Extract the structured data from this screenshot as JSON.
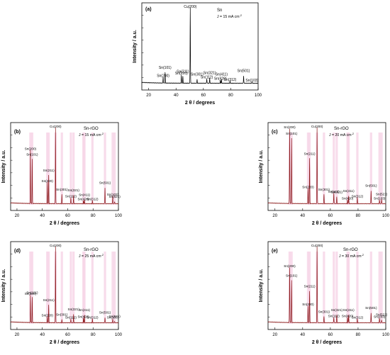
{
  "chart_data": [
    {
      "type": "line",
      "panel": "(a)",
      "material": "Sn",
      "current_density": "J = 15 mA cm",
      "current_density_sup": "-2",
      "xlabel": "2 θ / degrees",
      "ylabel": "Intensity / a.u.",
      "xlim": [
        15,
        100
      ],
      "xticks": [
        20,
        40,
        60,
        80,
        100
      ],
      "series_color": "#000000",
      "peaks": [
        {
          "label": "Sn(200)",
          "x": 30.6,
          "h": 0.08
        },
        {
          "label": "Sn(101)",
          "x": 32.0,
          "h": 0.14
        },
        {
          "label": "Sn(220)",
          "x": 43.9,
          "h": 0.11
        },
        {
          "label": "Sn(211)",
          "x": 45.0,
          "h": 0.09
        },
        {
          "label": "Cu(200)",
          "x": 50.4,
          "h": 1.0
        },
        {
          "label": "Sn(301)",
          "x": 55.4,
          "h": 0.05
        },
        {
          "label": "Sn(112)",
          "x": 62.5,
          "h": 0.06
        },
        {
          "label": "Sn(321)",
          "x": 64.6,
          "h": 0.07
        },
        {
          "label": "Sn(420)",
          "x": 72.4,
          "h": 0.04
        },
        {
          "label": "Sn(411)",
          "x": 73.2,
          "h": 0.05
        },
        {
          "label": "Sn(312)",
          "x": 79.5,
          "h": 0.03
        },
        {
          "label": "Sn(501)",
          "x": 89.4,
          "h": 0.1
        },
        {
          "label": "Sn(103)",
          "x": 95.5,
          "h": 0.02
        }
      ]
    },
    {
      "type": "line",
      "panel": "(b)",
      "material": "Sn-rGO",
      "current_density": "J = 15 mA cm",
      "current_density_sup": "-2",
      "xlabel": "2 θ / degrees",
      "ylabel": "Intensity / a.u.",
      "xlim": [
        15,
        100
      ],
      "xticks": [
        20,
        40,
        60,
        80,
        100
      ],
      "series_color": "#8b1a1a",
      "peaks": [
        {
          "label": "Sn(200)",
          "x": 30.6,
          "h": 0.7
        },
        {
          "label": "Sn(101)",
          "x": 32.0,
          "h": 0.58
        },
        {
          "label": "Sn(220)",
          "x": 43.9,
          "h": 0.28
        },
        {
          "label": "Sn(211)",
          "x": 45.0,
          "h": 0.37
        },
        {
          "label": "Cu(200)",
          "x": 50.4,
          "h": 1.0
        },
        {
          "label": "Sn(301)",
          "x": 55.4,
          "h": 0.12
        },
        {
          "label": "Sn(112)",
          "x": 62.5,
          "h": 0.08
        },
        {
          "label": "Sn(321)",
          "x": 64.6,
          "h": 0.11
        },
        {
          "label": "Sn(420)",
          "x": 72.4,
          "h": 0.04
        },
        {
          "label": "Sn(411)",
          "x": 73.2,
          "h": 0.05
        },
        {
          "label": "Sn(312)",
          "x": 79.5,
          "h": 0.04
        },
        {
          "label": "Sn(501)",
          "x": 89.4,
          "h": 0.21
        },
        {
          "label": "Sn(103)",
          "x": 95.5,
          "h": 0.1
        },
        {
          "label": "Sn(521)",
          "x": 97.0,
          "h": 0.03
        }
      ]
    },
    {
      "type": "line",
      "panel": "(c)",
      "material": "Sn-rGO",
      "current_density": "J = 20 mA cm",
      "current_density_sup": "-2",
      "xlabel": "2 θ / degrees",
      "ylabel": "Intensity / a.u.",
      "xlim": [
        15,
        100
      ],
      "xticks": [
        20,
        40,
        60,
        80,
        100
      ],
      "series_color": "#8b1a1a",
      "peaks": [
        {
          "label": "Sn(200)",
          "x": 30.6,
          "h": 0.98
        },
        {
          "label": "Sn(101)",
          "x": 32.0,
          "h": 0.85
        },
        {
          "label": "Sn(220)",
          "x": 43.9,
          "h": 0.2
        },
        {
          "label": "Sn(211)",
          "x": 45.0,
          "h": 0.59
        },
        {
          "label": "Cu(200)",
          "x": 50.4,
          "h": 1.0
        },
        {
          "label": "Sn(301)",
          "x": 55.4,
          "h": 0.12
        },
        {
          "label": "Sn(112)",
          "x": 62.5,
          "h": 0.14
        },
        {
          "label": "Sn(321)",
          "x": 64.6,
          "h": 0.09
        },
        {
          "label": "Sn(420)",
          "x": 72.4,
          "h": 0.05
        },
        {
          "label": "Sn(411)",
          "x": 73.2,
          "h": 0.1
        },
        {
          "label": "Sn(312)",
          "x": 79.5,
          "h": 0.08
        },
        {
          "label": "Sn(501)",
          "x": 89.4,
          "h": 0.17
        },
        {
          "label": "Sn(103)",
          "x": 95.5,
          "h": 0.05
        },
        {
          "label": "Sn(521)",
          "x": 97.0,
          "h": 0.06
        }
      ]
    },
    {
      "type": "line",
      "panel": "(d)",
      "material": "Sn-rGO",
      "current_density": "J = 25 mA cm",
      "current_density_sup": "-2",
      "xlabel": "2 θ / degrees",
      "ylabel": "Intensity / a.u.",
      "xlim": [
        15,
        100
      ],
      "xticks": [
        20,
        40,
        60,
        80,
        100
      ],
      "series_color": "#8b1a1a",
      "peaks": [
        {
          "label": "Sn(200)",
          "x": 30.6,
          "h": 0.36
        },
        {
          "label": "Sn(101)",
          "x": 32.0,
          "h": 0.33
        },
        {
          "label": "Sn(220)",
          "x": 43.9,
          "h": 0.08
        },
        {
          "label": "Sn(211)",
          "x": 45.0,
          "h": 0.23
        },
        {
          "label": "Cu(200)",
          "x": 50.4,
          "h": 1.0
        },
        {
          "label": "Sn(301)",
          "x": 55.4,
          "h": 0.04
        },
        {
          "label": "Sn(112)",
          "x": 62.5,
          "h": 0.05
        },
        {
          "label": "Sn(321)",
          "x": 64.6,
          "h": 0.11
        },
        {
          "label": "Sn(420)",
          "x": 72.4,
          "h": 0.06
        },
        {
          "label": "Sn(411)",
          "x": 73.2,
          "h": 0.1
        },
        {
          "label": "Sn(312)",
          "x": 79.5,
          "h": 0.05
        },
        {
          "label": "Sn(501)",
          "x": 89.4,
          "h": 0.07
        },
        {
          "label": "Sn(103)",
          "x": 95.5,
          "h": 0.05
        },
        {
          "label": "Sn(521)",
          "x": 97.0,
          "h": 0.02
        }
      ]
    },
    {
      "type": "line",
      "panel": "(e)",
      "material": "Sn-rGO",
      "current_density": "J = 30 mA cm",
      "current_density_sup": "-2",
      "xlabel": "2 θ / degrees",
      "ylabel": "Intensity / a.u.",
      "xlim": [
        15,
        100
      ],
      "xticks": [
        20,
        40,
        60,
        80,
        100
      ],
      "series_color": "#8b1a1a",
      "peaks": [
        {
          "label": "Sn(200)",
          "x": 30.6,
          "h": 0.72
        },
        {
          "label": "Sn(101)",
          "x": 32.0,
          "h": 0.55
        },
        {
          "label": "Sn(220)",
          "x": 43.9,
          "h": 0.22
        },
        {
          "label": "Sn(211)",
          "x": 45.0,
          "h": 0.41
        },
        {
          "label": "Cu(200)",
          "x": 50.4,
          "h": 1.0
        },
        {
          "label": "Sn(301)",
          "x": 55.4,
          "h": 0.08
        },
        {
          "label": "Sn(112)",
          "x": 62.5,
          "h": 0.07
        },
        {
          "label": "Sn(321)",
          "x": 64.6,
          "h": 0.1
        },
        {
          "label": "Sn(420)",
          "x": 72.4,
          "h": 0.07
        },
        {
          "label": "Sn(411)",
          "x": 73.2,
          "h": 0.1
        },
        {
          "label": "Sn(312)",
          "x": 79.5,
          "h": 0.05
        },
        {
          "label": "Sn(501)",
          "x": 89.4,
          "h": 0.13
        },
        {
          "label": "Sn(103)",
          "x": 95.5,
          "h": 0.06
        },
        {
          "label": "Sn(521)",
          "x": 97.0,
          "h": 0.04
        }
      ]
    }
  ]
}
